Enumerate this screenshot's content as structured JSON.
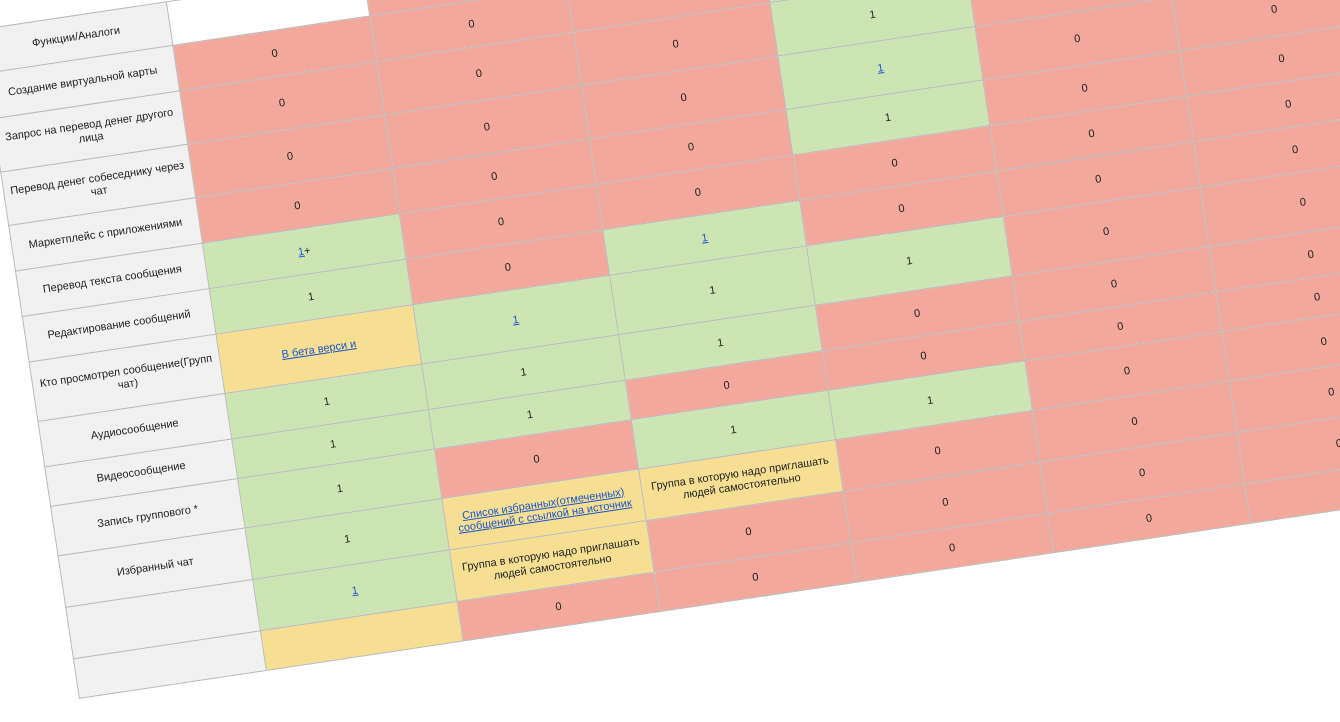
{
  "rows": [
    {
      "label": "Функции/Аналоги",
      "cells": [
        {
          "text": "",
          "color": "white",
          "kind": "text"
        },
        {
          "text": "",
          "color": "red",
          "kind": "text"
        },
        {
          "text": "0",
          "color": "red",
          "kind": "text"
        },
        {
          "text": "",
          "color": "green",
          "kind": "text"
        },
        {
          "text": "",
          "color": "green",
          "kind": "text"
        },
        {
          "text": "0",
          "color": "red",
          "kind": "text"
        }
      ]
    },
    {
      "label": "Создание виртуальной карты",
      "cells": [
        {
          "text": "0",
          "color": "red",
          "kind": "text"
        },
        {
          "text": "0",
          "color": "red",
          "kind": "text"
        },
        {
          "text": "0",
          "color": "red",
          "kind": "text"
        },
        {
          "text": "1",
          "color": "green",
          "kind": "link"
        },
        {
          "text": "0",
          "color": "red",
          "kind": "text"
        },
        {
          "text": "0",
          "color": "red",
          "kind": "text"
        }
      ]
    },
    {
      "label": "Запрос на перевод денег другого лица",
      "cells": [
        {
          "text": "0",
          "color": "red",
          "kind": "text"
        },
        {
          "text": "0",
          "color": "red",
          "kind": "text"
        },
        {
          "text": "0",
          "color": "red",
          "kind": "text"
        },
        {
          "text": "1",
          "color": "green",
          "kind": "text"
        },
        {
          "text": "0",
          "color": "red",
          "kind": "text"
        },
        {
          "text": "0",
          "color": "red",
          "kind": "text"
        }
      ]
    },
    {
      "label": "Перевод денег собеседнику через чат",
      "cells": [
        {
          "text": "0",
          "color": "red",
          "kind": "text"
        },
        {
          "text": "0",
          "color": "red",
          "kind": "text"
        },
        {
          "text": "0",
          "color": "red",
          "kind": "text"
        },
        {
          "text": "1",
          "color": "green",
          "kind": "link"
        },
        {
          "text": "0",
          "color": "red",
          "kind": "text"
        },
        {
          "text": "0",
          "color": "red",
          "kind": "text"
        }
      ]
    },
    {
      "label": "Маркетплейс с приложениями",
      "cells": [
        {
          "text": "0",
          "color": "red",
          "kind": "text"
        },
        {
          "text": "0",
          "color": "red",
          "kind": "text"
        },
        {
          "text": "0",
          "color": "red",
          "kind": "text"
        },
        {
          "text": "1",
          "color": "green",
          "kind": "text"
        },
        {
          "text": "0",
          "color": "red",
          "kind": "text"
        },
        {
          "text": "0",
          "color": "red",
          "kind": "text"
        }
      ]
    },
    {
      "label": "Перевод текста сообщения",
      "cells": [
        {
          "text": "1",
          "suffix": "+",
          "color": "green",
          "kind": "link"
        },
        {
          "text": "0",
          "color": "red",
          "kind": "text"
        },
        {
          "text": "0",
          "color": "red",
          "kind": "text"
        },
        {
          "text": "0",
          "color": "red",
          "kind": "text"
        },
        {
          "text": "0",
          "color": "red",
          "kind": "text"
        },
        {
          "text": "0",
          "color": "red",
          "kind": "text"
        }
      ]
    },
    {
      "label": "Редактирование сообщений",
      "cells": [
        {
          "text": "1",
          "color": "green",
          "kind": "text"
        },
        {
          "text": "0",
          "color": "red",
          "kind": "text"
        },
        {
          "text": "1",
          "color": "green",
          "kind": "link"
        },
        {
          "text": "0",
          "color": "red",
          "kind": "text"
        },
        {
          "text": "0",
          "color": "red",
          "kind": "text"
        },
        {
          "text": "0",
          "color": "red",
          "kind": "text"
        }
      ]
    },
    {
      "label": "Кто просмотрел сообщение(Групп чат)",
      "cells": [
        {
          "text": "В бета верси и",
          "color": "yellow",
          "kind": "link"
        },
        {
          "text": "1",
          "color": "green",
          "kind": "link"
        },
        {
          "text": "1",
          "color": "green",
          "kind": "text"
        },
        {
          "text": "1",
          "color": "green",
          "kind": "text"
        },
        {
          "text": "0",
          "color": "red",
          "kind": "text"
        },
        {
          "text": "0",
          "color": "red",
          "kind": "text"
        }
      ]
    },
    {
      "label": "Аудиосообщение",
      "cells": [
        {
          "text": "1",
          "color": "green",
          "kind": "text"
        },
        {
          "text": "1",
          "color": "green",
          "kind": "text"
        },
        {
          "text": "1",
          "color": "green",
          "kind": "text"
        },
        {
          "text": "0",
          "color": "red",
          "kind": "text"
        },
        {
          "text": "0",
          "color": "red",
          "kind": "text"
        },
        {
          "text": "0",
          "color": "red",
          "kind": "text"
        }
      ]
    },
    {
      "label": "Видеосообщение",
      "cells": [
        {
          "text": "1",
          "color": "green",
          "kind": "text"
        },
        {
          "text": "1",
          "color": "green",
          "kind": "text"
        },
        {
          "text": "0",
          "color": "red",
          "kind": "text"
        },
        {
          "text": "0",
          "color": "red",
          "kind": "text"
        },
        {
          "text": "0",
          "color": "red",
          "kind": "text"
        },
        {
          "text": "0",
          "color": "red",
          "kind": "text"
        }
      ]
    },
    {
      "label": "Запись группового *",
      "cells": [
        {
          "text": "1",
          "color": "green",
          "kind": "text"
        },
        {
          "text": "0",
          "color": "red",
          "kind": "text"
        },
        {
          "text": "1",
          "color": "green",
          "kind": "text"
        },
        {
          "text": "1",
          "color": "green",
          "kind": "text"
        },
        {
          "text": "0",
          "color": "red",
          "kind": "text"
        },
        {
          "text": "0",
          "color": "red",
          "kind": "text"
        }
      ]
    },
    {
      "label": "Избранный чат",
      "cells": [
        {
          "text": "1",
          "color": "green",
          "kind": "text"
        },
        {
          "text": "Список избранных(отмеченных) сообщений с ссылкой на источник",
          "color": "yellow",
          "kind": "link"
        },
        {
          "text": "Группа в которую надо приглашать людей самостоятельно",
          "color": "yellow",
          "kind": "note"
        },
        {
          "text": "0",
          "color": "red",
          "kind": "text"
        },
        {
          "text": "0",
          "color": "red",
          "kind": "text"
        },
        {
          "text": "0",
          "color": "red",
          "kind": "text"
        }
      ]
    },
    {
      "label": "",
      "cells": [
        {
          "text": "1",
          "color": "green",
          "kind": "link"
        },
        {
          "text": "Группа в которую надо приглашать людей самостоятельно",
          "color": "yellow",
          "kind": "note"
        },
        {
          "text": "0",
          "color": "red",
          "kind": "text"
        },
        {
          "text": "0",
          "color": "red",
          "kind": "text"
        },
        {
          "text": "0",
          "color": "red",
          "kind": "text"
        },
        {
          "text": "0",
          "color": "red",
          "kind": "text"
        }
      ]
    },
    {
      "label": "",
      "cells": [
        {
          "text": "",
          "color": "yellow",
          "kind": "text"
        },
        {
          "text": "0",
          "color": "red",
          "kind": "text"
        },
        {
          "text": "0",
          "color": "red",
          "kind": "text"
        },
        {
          "text": "0",
          "color": "red",
          "kind": "text"
        },
        {
          "text": "0",
          "color": "red",
          "kind": "text"
        },
        {
          "text": "0",
          "color": "red",
          "kind": "text"
        }
      ]
    }
  ]
}
